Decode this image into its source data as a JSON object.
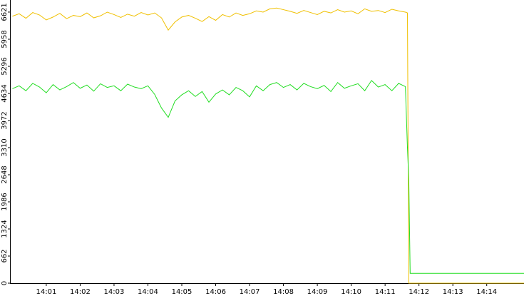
{
  "chart_data": {
    "type": "line",
    "x": [
      0.0,
      0.2,
      0.4,
      0.6,
      0.8,
      1.0,
      1.2,
      1.4,
      1.6,
      1.8,
      2.0,
      2.2,
      2.4,
      2.6,
      2.8,
      3.0,
      3.2,
      3.4,
      3.6,
      3.8,
      4.0,
      4.2,
      4.4,
      4.6,
      4.8,
      5.0,
      5.2,
      5.4,
      5.6,
      5.8,
      6.0,
      6.2,
      6.4,
      6.6,
      6.8,
      7.0,
      7.2,
      7.4,
      7.6,
      7.8,
      8.0,
      8.2,
      8.4,
      8.6,
      8.8,
      9.0,
      9.2,
      9.4,
      9.6,
      9.8,
      10.0,
      10.2,
      10.4,
      10.6,
      10.8,
      11.0,
      11.2,
      11.4,
      11.6,
      11.66,
      11.7,
      11.74,
      15.1
    ],
    "series": [
      {
        "color": "#f0c000",
        "values": [
          6520,
          6580,
          6470,
          6610,
          6550,
          6430,
          6500,
          6590,
          6460,
          6540,
          6510,
          6600,
          6480,
          6530,
          6620,
          6560,
          6490,
          6570,
          6520,
          6610,
          6550,
          6600,
          6480,
          6180,
          6380,
          6500,
          6540,
          6470,
          6390,
          6510,
          6420,
          6560,
          6500,
          6600,
          6540,
          6580,
          6650,
          6620,
          6700,
          6720,
          6680,
          6640,
          6590,
          6660,
          6610,
          6560,
          6640,
          6600,
          6680,
          6620,
          6650,
          6580,
          6700,
          6640,
          6660,
          6610,
          6690,
          6650,
          6620,
          6600,
          0,
          0,
          0
        ]
      },
      {
        "color": "#22dd22",
        "values": [
          4750,
          4820,
          4700,
          4880,
          4790,
          4650,
          4850,
          4720,
          4800,
          4900,
          4760,
          4840,
          4690,
          4870,
          4780,
          4820,
          4700,
          4860,
          4790,
          4750,
          4820,
          4610,
          4280,
          4050,
          4450,
          4600,
          4700,
          4560,
          4680,
          4420,
          4620,
          4720,
          4600,
          4780,
          4700,
          4550,
          4820,
          4700,
          4850,
          4900,
          4780,
          4850,
          4720,
          4880,
          4800,
          4750,
          4830,
          4680,
          4900,
          4760,
          4820,
          4870,
          4700,
          4950,
          4790,
          4850,
          4700,
          4880,
          4800,
          3310,
          2520,
          240,
          240
        ]
      }
    ],
    "xlim": [
      -0.05,
      15.1
    ],
    "xticks": [
      {
        "value": 1,
        "label": "14:01"
      },
      {
        "value": 2,
        "label": "14:02"
      },
      {
        "value": 3,
        "label": "14:03"
      },
      {
        "value": 4,
        "label": "14:04"
      },
      {
        "value": 5,
        "label": "14:05"
      },
      {
        "value": 6,
        "label": "14:06"
      },
      {
        "value": 7,
        "label": "14:07"
      },
      {
        "value": 8,
        "label": "14:08"
      },
      {
        "value": 9,
        "label": "14:09"
      },
      {
        "value": 10,
        "label": "14:10"
      },
      {
        "value": 11,
        "label": "14:11"
      },
      {
        "value": 12,
        "label": "14:12"
      },
      {
        "value": 13,
        "label": "14:13"
      },
      {
        "value": 14,
        "label": "14:14"
      }
    ],
    "ylim": [
      0,
      6916
    ],
    "yticks": [
      0,
      662,
      1324,
      1986,
      2648,
      3310,
      3972,
      4634,
      5296,
      5958,
      6621
    ]
  }
}
